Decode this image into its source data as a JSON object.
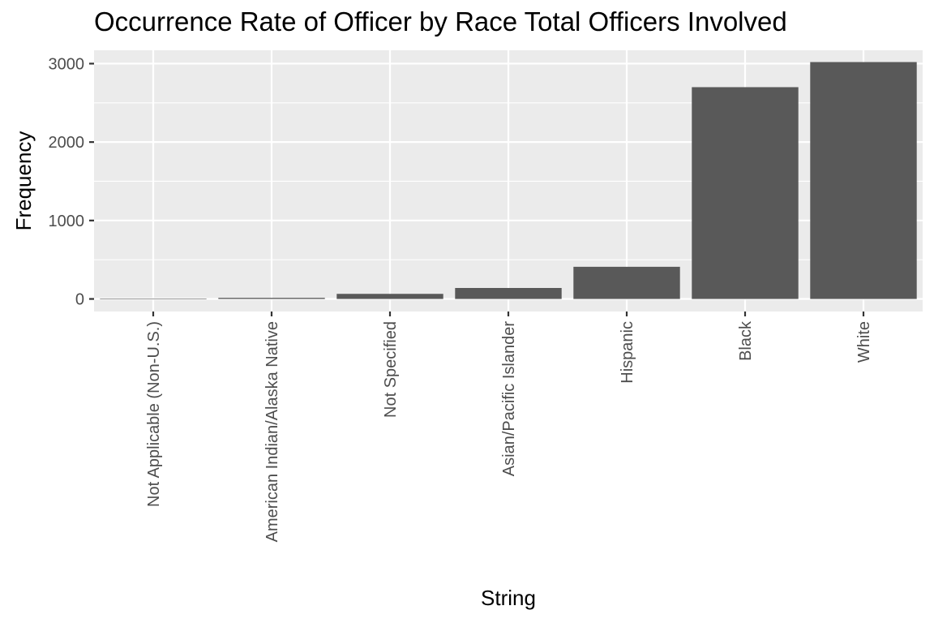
{
  "chart_data": {
    "type": "bar",
    "title": "Occurrence Rate of Officer by Race Total Officers Involved",
    "xlabel": "String",
    "ylabel": "Frequency",
    "categories": [
      "Not Applicable (Non-U.S.)",
      "American Indian/Alaska Native",
      "Not Specified",
      "Asian/Pacific Islander",
      "Hispanic",
      "Black",
      "White"
    ],
    "values": [
      2,
      14,
      65,
      140,
      410,
      2700,
      3020
    ],
    "ylim": [
      -160,
      3170
    ],
    "yticks": [
      0,
      1000,
      2000,
      3000
    ],
    "ytick_labels": [
      "0",
      "1000",
      "2000",
      "3000"
    ],
    "grid": true,
    "legend": "none",
    "colors": {
      "bar": "#595959",
      "panel_background": "#ebebeb",
      "gridline": "#ffffff",
      "text": "#000000",
      "tick_text": "#4d4d4d",
      "tick_mark": "#333333"
    }
  }
}
